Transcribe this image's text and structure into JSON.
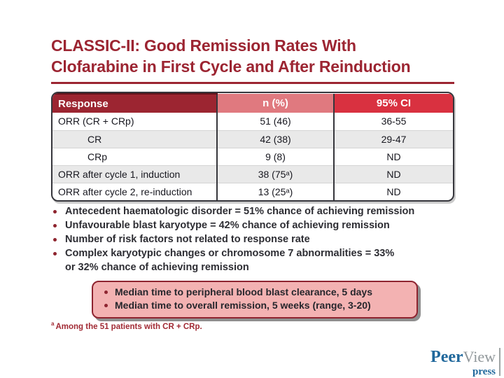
{
  "slide": {
    "title_line1": "CLASSIC-II: Good Remission Rates With",
    "title_line2": "Clofarabine in First Cycle and After Reinduction"
  },
  "table": {
    "headers": [
      "Response",
      "n (%)",
      "95% CI"
    ],
    "rows": [
      {
        "response": "ORR (CR + CRp)",
        "n_pct": "51 (46)",
        "ci": "36-55",
        "indent": false
      },
      {
        "response": "CR",
        "n_pct": "42 (38)",
        "ci": "29-47",
        "indent": true
      },
      {
        "response": "CRp",
        "n_pct": "9 (8)",
        "ci": "ND",
        "indent": true
      },
      {
        "response": "ORR after cycle 1, induction",
        "n_pct": "38 (75ᵃ)",
        "ci": "ND",
        "indent": false
      },
      {
        "response": "ORR after cycle 2, re-induction",
        "n_pct": "13 (25ᵃ)",
        "ci": "ND",
        "indent": false
      }
    ]
  },
  "bullets": [
    "Antecedent haematologic disorder = 51% chance of achieving remission",
    "Unfavourable blast karyotype = 42% chance of achieving remission",
    "Number of risk factors not related to response rate",
    "Complex karyotypic changes or chromosome 7 abnormalities = 33%\nor 32% chance of achieving remission"
  ],
  "callout": {
    "items": [
      "Median time to peripheral blood blast clearance, 5 days",
      "Median time to overall remission, 5 weeks (range, 3-20)"
    ]
  },
  "footnote": {
    "marker": "a",
    "text": "Among the 51 patients with CR + CRp."
  },
  "logo": {
    "part1": "Peer",
    "part2": "View",
    "part3": "press"
  },
  "colors": {
    "title_red": "#9c2532",
    "header_dark_red": "#9c2531",
    "header_pink": "#e0797f",
    "header_bright_red": "#d93140",
    "row_alt_gray": "#e9e9e9",
    "callout_bg": "#f3b2b2",
    "callout_border": "#8e2430",
    "logo_blue": "#20689c",
    "logo_gray": "#90979a"
  }
}
